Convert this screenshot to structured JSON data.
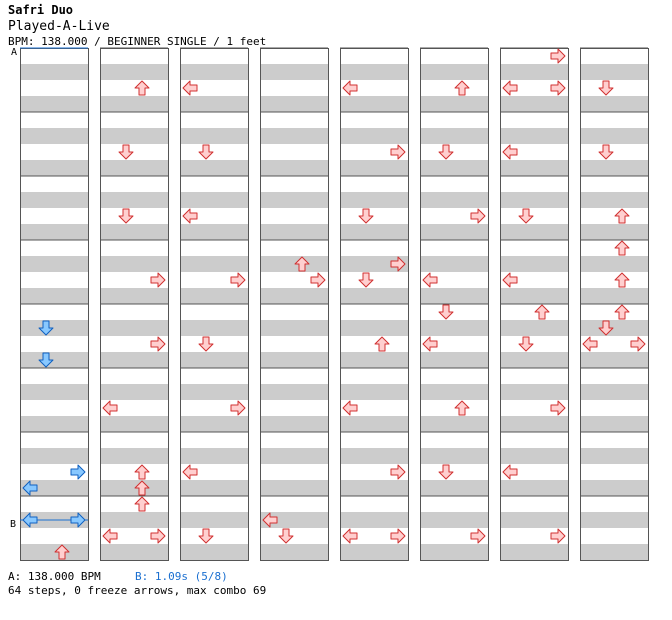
{
  "header": {
    "artist": "Safri Duo",
    "title": "Played-A-Live",
    "info": "BPM: 138.000 / BEGINNER SINGLE / 1 feet"
  },
  "markers": {
    "a": "A",
    "b": "B"
  },
  "footer": {
    "a_text": "A: 138.000 BPM",
    "b_text": "B: 1.09s (5/8)",
    "stats": "64 steps, 0 freeze arrows, max combo 69"
  },
  "colors": {
    "band": "#cccccc",
    "border": "#555555",
    "arrow_red_fill": "#ffcfcf",
    "arrow_red_stroke": "#d03030",
    "arrow_blue_fill": "#88c8ff",
    "arrow_blue_stroke": "#1060c0",
    "marker_blue": "#1a6fd0"
  },
  "chart_data": {
    "type": "step-chart",
    "columns": 8,
    "measures_per_column": 8,
    "lanes": [
      "left",
      "down",
      "up",
      "right"
    ],
    "note_fields": [
      "column",
      "measure",
      "beat_fraction",
      "lane",
      "color"
    ],
    "notes": [
      [
        0,
        5,
        0.5,
        "down",
        "blue"
      ],
      [
        0,
        6,
        0.0,
        "down",
        "blue"
      ],
      [
        0,
        7,
        0.75,
        "right",
        "blue"
      ],
      [
        0,
        8,
        0.0,
        "left",
        "blue"
      ],
      [
        0,
        8,
        0.5,
        "left",
        "blue"
      ],
      [
        0,
        8,
        0.5,
        "right",
        "blue"
      ],
      [
        0,
        8,
        1.0,
        "up",
        "red"
      ],
      [
        1,
        1,
        0.75,
        "up",
        "red"
      ],
      [
        1,
        2,
        0.75,
        "down",
        "red"
      ],
      [
        1,
        3,
        0.75,
        "down",
        "red"
      ],
      [
        1,
        4,
        0.75,
        "right",
        "red"
      ],
      [
        1,
        5,
        0.75,
        "right",
        "red"
      ],
      [
        1,
        6,
        0.75,
        "left",
        "red"
      ],
      [
        1,
        7,
        0.75,
        "up",
        "red"
      ],
      [
        1,
        8,
        0.0,
        "up",
        "red"
      ],
      [
        1,
        8,
        0.25,
        "up",
        "red"
      ],
      [
        1,
        8,
        0.75,
        "left",
        "red"
      ],
      [
        1,
        8,
        0.75,
        "right",
        "red"
      ],
      [
        2,
        1,
        0.75,
        "left",
        "red"
      ],
      [
        2,
        2,
        0.75,
        "down",
        "red"
      ],
      [
        2,
        3,
        0.75,
        "left",
        "red"
      ],
      [
        2,
        4,
        0.75,
        "right",
        "red"
      ],
      [
        2,
        5,
        0.75,
        "down",
        "red"
      ],
      [
        2,
        6,
        0.75,
        "right",
        "red"
      ],
      [
        2,
        7,
        0.75,
        "left",
        "red"
      ],
      [
        2,
        8,
        0.75,
        "down",
        "red"
      ],
      [
        3,
        4,
        0.5,
        "up",
        "red"
      ],
      [
        3,
        4,
        0.75,
        "right",
        "red"
      ],
      [
        3,
        8,
        0.5,
        "left",
        "red"
      ],
      [
        3,
        8,
        0.75,
        "down",
        "red"
      ],
      [
        4,
        1,
        0.75,
        "left",
        "red"
      ],
      [
        4,
        2,
        0.75,
        "right",
        "red"
      ],
      [
        4,
        3,
        0.75,
        "down",
        "red"
      ],
      [
        4,
        4,
        0.5,
        "right",
        "red"
      ],
      [
        4,
        4,
        0.75,
        "down",
        "red"
      ],
      [
        4,
        5,
        0.75,
        "up",
        "red"
      ],
      [
        4,
        6,
        0.75,
        "left",
        "red"
      ],
      [
        4,
        7,
        0.75,
        "right",
        "red"
      ],
      [
        4,
        8,
        0.75,
        "left",
        "red"
      ],
      [
        4,
        8,
        0.75,
        "right",
        "red"
      ],
      [
        5,
        1,
        0.75,
        "up",
        "red"
      ],
      [
        5,
        2,
        0.75,
        "down",
        "red"
      ],
      [
        5,
        3,
        0.75,
        "right",
        "red"
      ],
      [
        5,
        4,
        0.75,
        "left",
        "red"
      ],
      [
        5,
        5,
        0.25,
        "down",
        "red"
      ],
      [
        5,
        5,
        0.75,
        "left",
        "red"
      ],
      [
        5,
        6,
        0.75,
        "up",
        "red"
      ],
      [
        5,
        7,
        0.75,
        "down",
        "red"
      ],
      [
        5,
        8,
        0.75,
        "right",
        "red"
      ],
      [
        6,
        1,
        0.25,
        "right",
        "red"
      ],
      [
        6,
        1,
        0.75,
        "left",
        "red"
      ],
      [
        6,
        1,
        0.75,
        "right",
        "red"
      ],
      [
        6,
        2,
        0.75,
        "left",
        "red"
      ],
      [
        6,
        3,
        0.75,
        "down",
        "red"
      ],
      [
        6,
        4,
        0.75,
        "left",
        "red"
      ],
      [
        6,
        5,
        0.25,
        "up",
        "red"
      ],
      [
        6,
        5,
        0.75,
        "down",
        "red"
      ],
      [
        6,
        6,
        0.75,
        "right",
        "red"
      ],
      [
        6,
        7,
        0.75,
        "left",
        "red"
      ],
      [
        6,
        8,
        0.75,
        "right",
        "red"
      ],
      [
        7,
        1,
        0.75,
        "down",
        "red"
      ],
      [
        7,
        2,
        0.75,
        "down",
        "red"
      ],
      [
        7,
        3,
        0.75,
        "up",
        "red"
      ],
      [
        7,
        4,
        0.25,
        "up",
        "red"
      ],
      [
        7,
        4,
        0.75,
        "up",
        "red"
      ],
      [
        7,
        5,
        0.25,
        "up",
        "red"
      ],
      [
        7,
        5,
        0.5,
        "down",
        "red"
      ],
      [
        7,
        5,
        0.75,
        "left",
        "red"
      ],
      [
        7,
        5,
        0.75,
        "right",
        "red"
      ]
    ]
  }
}
